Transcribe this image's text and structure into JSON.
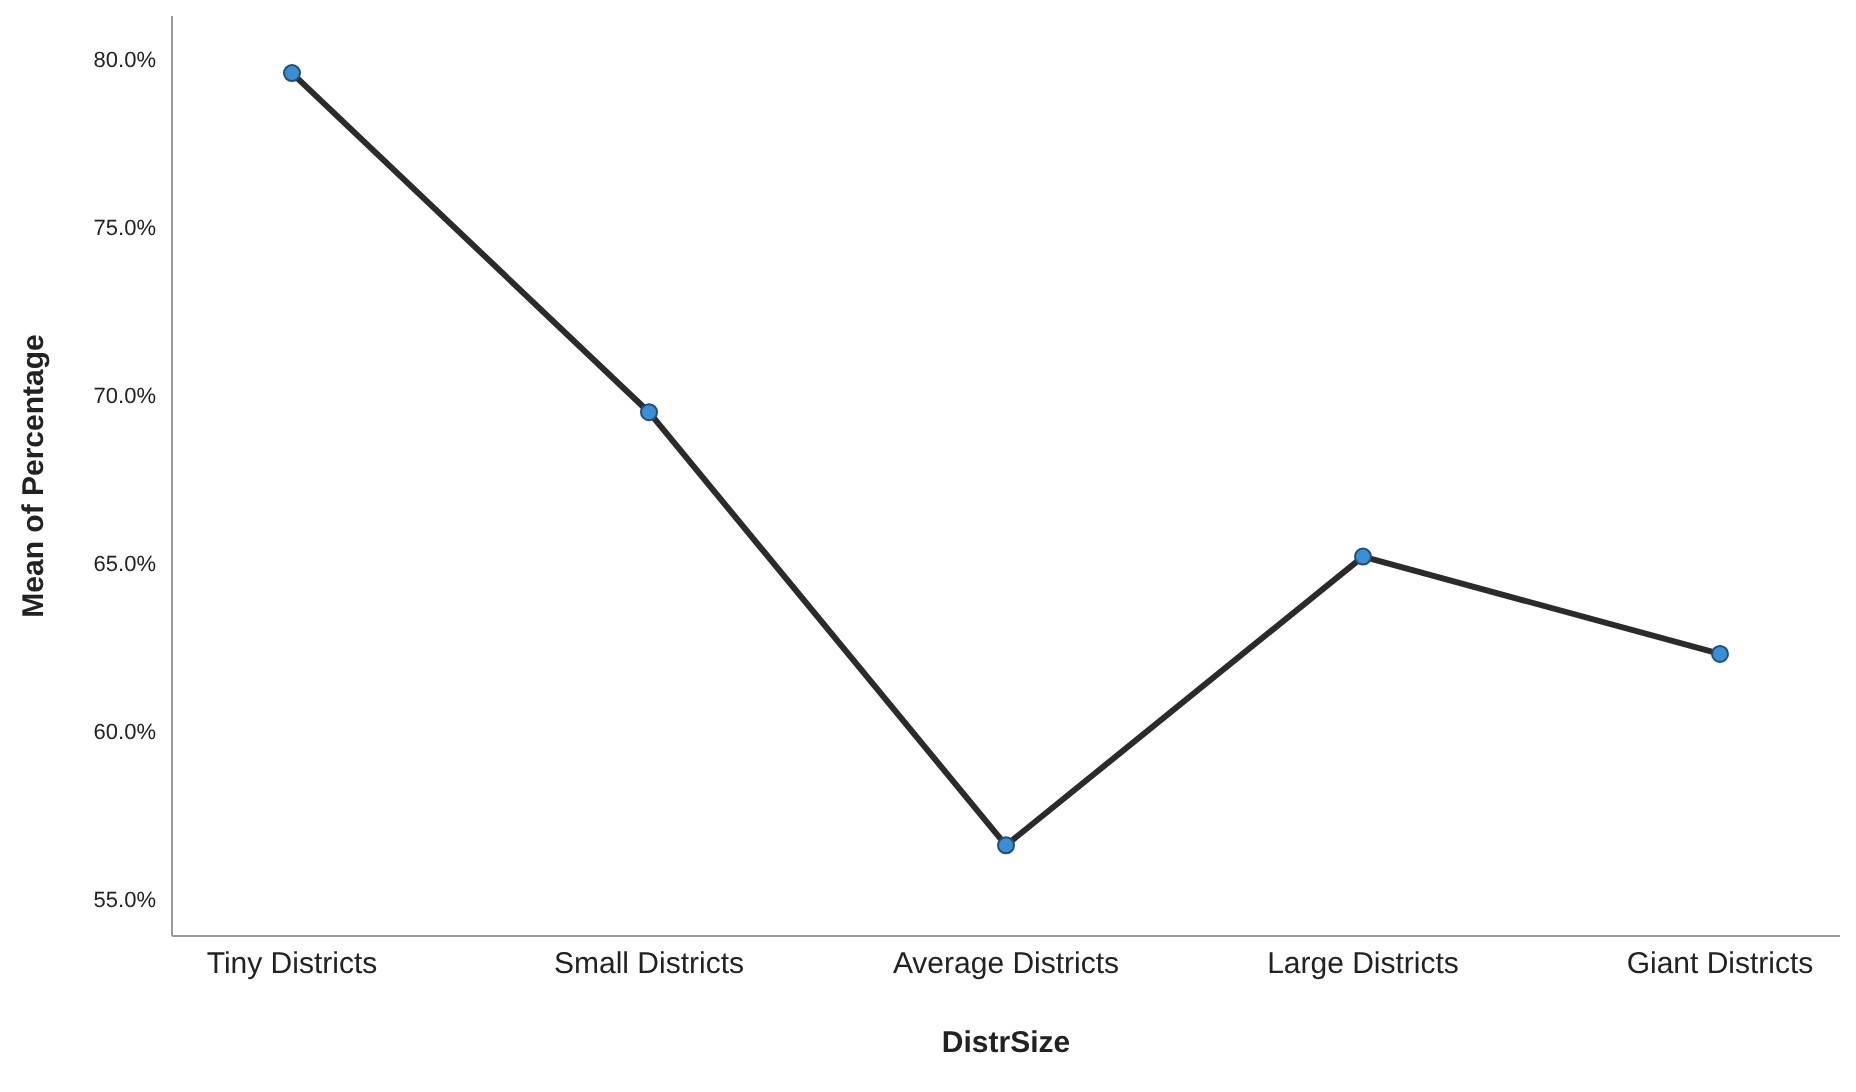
{
  "chart_data": {
    "type": "line",
    "xlabel": "DistrSize",
    "ylabel": "Mean of Percentage",
    "categories": [
      "Tiny Districts",
      "Small Districts",
      "Average Districts",
      "Large Districts",
      "Giant Districts"
    ],
    "series": [
      {
        "color": "#2b2b2b",
        "colors": [
          "#3b8ed4",
          "#3b8ed4",
          "#3b8ed4",
          "#3b8ed4",
          "#3b8ed4"
        ],
        "values": [
          79.6,
          69.5,
          56.6,
          65.2,
          62.3
        ]
      }
    ],
    "ylim": [
      53.9,
      81.3
    ],
    "yticks": [
      {
        "value": 55,
        "label": "55.0%"
      },
      {
        "value": 60,
        "label": "60.0%"
      },
      {
        "value": 65,
        "label": "65.0%"
      },
      {
        "value": 70,
        "label": "70.0%"
      },
      {
        "value": 75,
        "label": "75.0%"
      },
      {
        "value": 80,
        "label": "80.0%"
      }
    ],
    "marker": "circle",
    "grid": false
  }
}
